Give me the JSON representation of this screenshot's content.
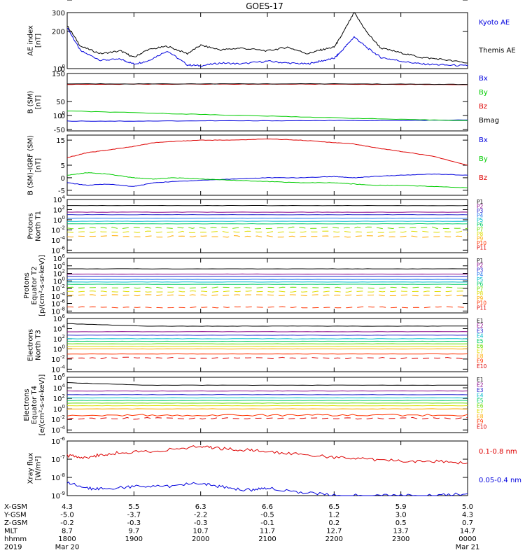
{
  "title": "GOES-17",
  "colors": {
    "black": "#000000",
    "blue": "#0000dd",
    "green": "#00cc00",
    "red": "#dd0000",
    "p1": "#000000",
    "p2": "#880088",
    "p3": "#2222cc",
    "p4": "#2277ee",
    "p5": "#00bbcc",
    "p6": "#00cc66",
    "p7": "#66dd00",
    "p8": "#dddd00",
    "p9": "#ffaa00",
    "p10": "#ff3300",
    "p11": "#dd0000"
  },
  "x_axis": {
    "rows": [
      {
        "label": "X-GSM",
        "values": [
          "4.3",
          "5.5",
          "6.3",
          "6.6",
          "6.5",
          "5.9",
          "5.0"
        ]
      },
      {
        "label": "Y-GSM",
        "values": [
          "-5.0",
          "-3.7",
          "-2.2",
          "-0.5",
          "1.2",
          "3.0",
          "4.3"
        ]
      },
      {
        "label": "Z-GSM",
        "values": [
          "-0.2",
          "-0.3",
          "-0.3",
          "-0.1",
          "0.2",
          "0.5",
          "0.7"
        ]
      },
      {
        "label": "MLT",
        "values": [
          "8.7",
          "9.7",
          "10.7",
          "11.7",
          "12.7",
          "13.7",
          "14.7"
        ]
      },
      {
        "label": "hhmm",
        "values": [
          "1800",
          "1900",
          "2000",
          "2100",
          "2200",
          "2300",
          "0000"
        ]
      }
    ],
    "date_row": {
      "label": "2019",
      "start": "Mar 20",
      "end": "Mar 21"
    }
  },
  "chart_data": [
    {
      "type": "line",
      "ylabel": "AE index\n[nT]",
      "yticks": [
        "0",
        "100",
        "200",
        "300"
      ],
      "ylim": [
        0,
        300
      ],
      "x": [
        18.0,
        18.2,
        18.5,
        18.8,
        19.0,
        19.2,
        19.5,
        19.8,
        20.0,
        20.3,
        20.6,
        21.0,
        21.3,
        21.6,
        21.8,
        22.0,
        22.1,
        22.3,
        22.5,
        22.7,
        23.0,
        23.3,
        23.6,
        24.0
      ],
      "series": [
        {
          "name": "Kyoto AE",
          "color": "blue",
          "values": [
            220,
            95,
            45,
            50,
            25,
            40,
            95,
            20,
            15,
            30,
            25,
            40,
            30,
            25,
            40,
            55,
            90,
            170,
            110,
            60,
            40,
            25,
            20,
            15
          ]
        },
        {
          "name": "Themis AE",
          "color": "black",
          "values": [
            230,
            120,
            80,
            95,
            60,
            100,
            120,
            80,
            125,
            100,
            110,
            95,
            115,
            80,
            100,
            115,
            170,
            300,
            190,
            110,
            85,
            60,
            50,
            30
          ]
        }
      ]
    },
    {
      "type": "line",
      "ylabel": "B (SM)\n[nT]",
      "yticks": [
        "-50",
        "0",
        "50",
        "100",
        "150"
      ],
      "ylim": [
        -55,
        150
      ],
      "x": [
        18.0,
        19.0,
        20.0,
        21.0,
        22.0,
        23.0,
        24.0
      ],
      "series": [
        {
          "name": "Bx",
          "color": "blue",
          "values": [
            -20,
            -20,
            -19,
            -19,
            -18,
            -18,
            -16
          ]
        },
        {
          "name": "By",
          "color": "green",
          "values": [
            16,
            10,
            4,
            -2,
            -8,
            -14,
            -18
          ]
        },
        {
          "name": "Bz",
          "color": "red",
          "values": [
            111,
            112,
            112,
            112,
            112,
            111,
            110
          ]
        },
        {
          "name": "Bmag",
          "color": "black",
          "values": [
            113,
            113,
            113,
            113,
            113,
            112,
            111
          ]
        }
      ]
    },
    {
      "type": "line",
      "ylabel": "B (SM)-IGRF (SM)\n[nT]",
      "yticks": [
        "-5",
        "0",
        "5",
        "10",
        "15"
      ],
      "ylim": [
        -7,
        17
      ],
      "x": [
        18.0,
        18.3,
        18.6,
        19.0,
        19.3,
        19.6,
        20.0,
        20.5,
        21.0,
        21.5,
        22.0,
        22.3,
        22.6,
        23.0,
        23.5,
        24.0
      ],
      "series": [
        {
          "name": "Bx",
          "color": "blue",
          "values": [
            -2,
            -3,
            -2.5,
            -3.5,
            -2,
            -1.5,
            -1,
            -0.5,
            0,
            0,
            0.5,
            0,
            0.5,
            1,
            1.5,
            1
          ]
        },
        {
          "name": "By",
          "color": "green",
          "values": [
            1,
            2,
            1.5,
            0,
            -0.5,
            0,
            -0.5,
            -1,
            -1.5,
            -2,
            -2,
            -2.5,
            -3,
            -3,
            -3.5,
            -4
          ]
        },
        {
          "name": "Bz",
          "color": "red",
          "values": [
            8,
            10,
            11,
            12.5,
            14,
            14.5,
            15,
            15,
            15.5,
            15,
            14,
            13.5,
            12,
            10.5,
            8.5,
            5
          ]
        }
      ]
    },
    {
      "type": "line",
      "ylabel": "Protons\nNorth T1",
      "yticks": [
        "10-6",
        "10-4",
        "10-2",
        "100",
        "102",
        "104"
      ],
      "ylim": [
        -6.5,
        4
      ],
      "log_levels": [
        2.8,
        1.5,
        1.0,
        0.3,
        -0.3,
        -0.8,
        -1.6,
        -2.4,
        -3.3,
        -99,
        -99
      ],
      "series_labels": [
        "P1",
        "P2",
        "P3",
        "P4",
        "P5",
        "P6",
        "P7",
        "P8",
        "P9",
        "P10",
        "P11"
      ],
      "series_colors": [
        "p1",
        "p2",
        "p3",
        "p4",
        "p5",
        "p6",
        "p7",
        "p8",
        "p9",
        "p10",
        "p11"
      ]
    },
    {
      "type": "line",
      "ylabel": "Protons\nEquator T2\n[p/(cm²-s-sr-keV)]",
      "yticks": [
        "10-8",
        "10-6",
        "10-4",
        "10-2",
        "100",
        "102",
        "104",
        "106"
      ],
      "ylim": [
        -8.5,
        6
      ],
      "log_levels": [
        3.2,
        1.8,
        1.2,
        0.4,
        -0.3,
        -0.9,
        -1.8,
        -2.8,
        -3.8,
        -7.0,
        -99
      ],
      "series_labels": [
        "P1",
        "P2",
        "P3",
        "P4",
        "P5",
        "P6",
        "P7",
        "P8",
        "P9",
        "P10",
        "P11"
      ],
      "series_colors": [
        "p1",
        "p2",
        "p3",
        "p4",
        "p5",
        "p6",
        "p7",
        "p8",
        "p9",
        "p10",
        "p11"
      ]
    },
    {
      "type": "line",
      "ylabel": "Electrons\nNorth T3",
      "yticks": [
        "10-4",
        "10-2",
        "100",
        "102",
        "104",
        "106"
      ],
      "ylim": [
        -4.5,
        6
      ],
      "log_levels": [
        4.5,
        3.4,
        2.7,
        2.0,
        1.5,
        1.0,
        0.5,
        0.0,
        -1.0,
        -1.8
      ],
      "series_labels": [
        "E1",
        "E2",
        "E3",
        "E4",
        "E5",
        "E6",
        "E7",
        "E8",
        "E9",
        "E10"
      ],
      "series_colors": [
        "p1",
        "p2",
        "p3",
        "p5",
        "p6",
        "p7",
        "p8",
        "p9",
        "p10",
        "p11"
      ]
    },
    {
      "type": "line",
      "ylabel": "Electrons\nEquator T4\n[e/(cm²-s-sr-keV)]",
      "yticks": [
        "10-4",
        "10-2",
        "100",
        "102",
        "104",
        "106"
      ],
      "ylim": [
        -4.5,
        6
      ],
      "log_levels": [
        4.5,
        3.4,
        2.7,
        2.1,
        1.6,
        1.1,
        0.6,
        0.0,
        -1.2,
        -1.8
      ],
      "series_labels": [
        "E1",
        "E2",
        "E3",
        "E4",
        "E5",
        "E6",
        "E7",
        "E8",
        "E9",
        "E10"
      ],
      "series_colors": [
        "p1",
        "p2",
        "p3",
        "p5",
        "p6",
        "p7",
        "p8",
        "p9",
        "p10",
        "p11"
      ]
    },
    {
      "type": "line",
      "ylabel": "Xray flux\n[W/m²]",
      "yticks": [
        "10-9",
        "10-8",
        "10-7",
        "10-6"
      ],
      "ylim": [
        -9,
        -6
      ],
      "x": [
        18.0,
        18.3,
        18.6,
        19.0,
        19.5,
        20.0,
        20.3,
        20.7,
        21.0,
        21.5,
        22.0,
        22.5,
        23.0,
        23.5,
        24.0
      ],
      "series": [
        {
          "name": "0.1-0.8 nm",
          "color": "red",
          "values": [
            -6.8,
            -6.9,
            -6.7,
            -6.6,
            -6.5,
            -6.3,
            -6.4,
            -6.5,
            -6.6,
            -6.7,
            -6.9,
            -7.0,
            -7.1,
            -7.1,
            -7.2
          ]
        },
        {
          "name": "0.05-0.4 nm",
          "color": "blue",
          "values": [
            -8.3,
            -8.6,
            -8.6,
            -8.5,
            -8.5,
            -8.3,
            -8.5,
            -8.7,
            -8.6,
            -8.8,
            -9.0,
            -9.0,
            -9.0,
            -9.0,
            -8.9
          ]
        }
      ]
    }
  ]
}
